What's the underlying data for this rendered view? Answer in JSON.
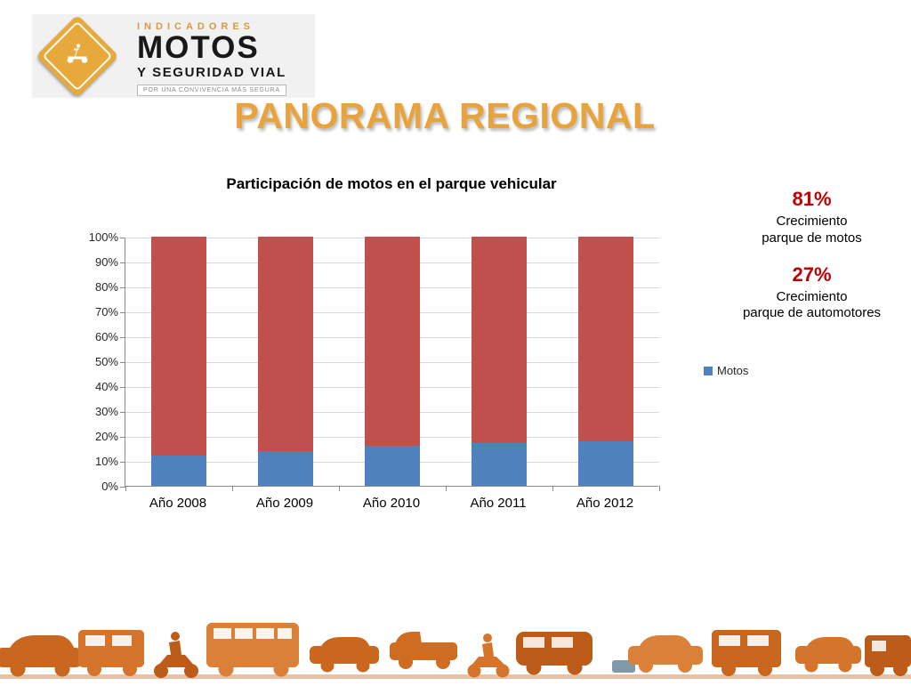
{
  "colors": {
    "title_gold": "#E8A33C",
    "stat_red": "#C00000",
    "bar_blue": "#4F81BD",
    "bar_red": "#C0504D",
    "logo_gold": "#E8A93C",
    "strip_orange": "#C9671E"
  },
  "logo": {
    "kicker": "INDICADORES",
    "brand": "MOTOS",
    "subbrand": "Y SEGURIDAD VIAL",
    "tagline": "POR UNA CONVIVENCIA MÁS SEGURA"
  },
  "slide": {
    "title": "PANORAMA REGIONAL"
  },
  "chart_data": {
    "type": "bar",
    "stacked": true,
    "title": "Participación de motos en el parque vehicular",
    "categories": [
      "Año 2008",
      "Año 2009",
      "Año 2010",
      "Año 2011",
      "Año 2012"
    ],
    "series": [
      {
        "name": "Motos",
        "color": "#4F81BD",
        "values": [
          12,
          14,
          16,
          17,
          18
        ]
      },
      {
        "name": "",
        "color": "#C0504D",
        "values": [
          88,
          86,
          84,
          83,
          82
        ]
      }
    ],
    "ylim": [
      0,
      100
    ],
    "ytick_step": 10,
    "ytick_format": "percent",
    "grid": true,
    "legend": {
      "entries": [
        "Motos"
      ],
      "position": "right"
    }
  },
  "stats": [
    {
      "value": "81%",
      "lines": [
        "Crecimiento",
        "parque de motos"
      ]
    },
    {
      "value": "27%",
      "lines": [
        "Crecimiento",
        "parque de automotores"
      ]
    }
  ]
}
